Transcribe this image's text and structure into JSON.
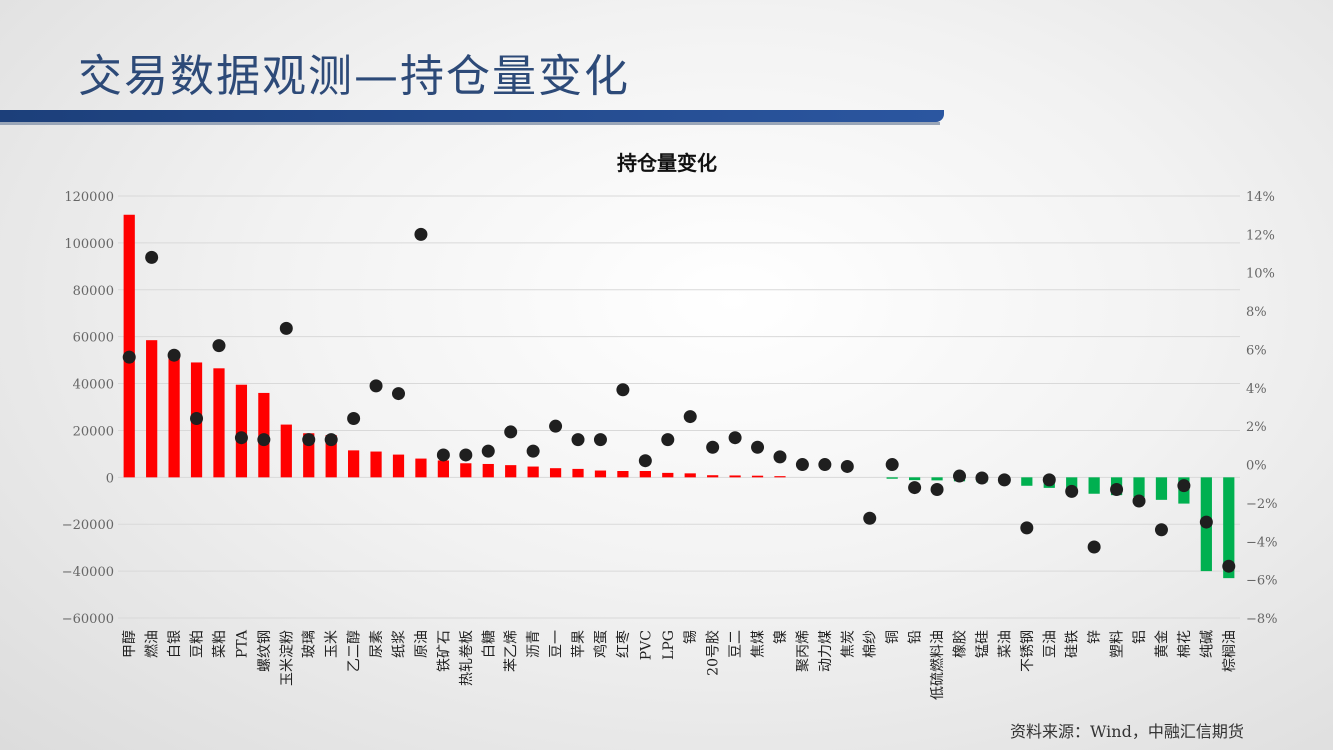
{
  "slide": {
    "title": "交易数据观测—持仓量变化",
    "source": "资料来源：Wind，中融汇信期货"
  },
  "chart_data": {
    "type": "bar",
    "title": "持仓量变化",
    "categories": [
      "甲醇",
      "燃油",
      "白银",
      "豆粕",
      "菜粕",
      "PTA",
      "螺纹钢",
      "玉米淀粉",
      "玻璃",
      "玉米",
      "乙二醇",
      "尿素",
      "纸浆",
      "原油",
      "铁矿石",
      "热轧卷板",
      "白糖",
      "苯乙烯",
      "沥青",
      "豆一",
      "苹果",
      "鸡蛋",
      "红枣",
      "PVC",
      "LPG",
      "锡",
      "20号胶",
      "豆二",
      "焦煤",
      "镍",
      "聚丙烯",
      "动力煤",
      "焦炭",
      "棉纱",
      "铜",
      "铅",
      "低硫燃料油",
      "橡胶",
      "锰硅",
      "菜油",
      "不锈钢",
      "豆油",
      "硅铁",
      "锌",
      "塑料",
      "铝",
      "黄金",
      "棉花",
      "纯碱",
      "棕榈油"
    ],
    "series": [
      {
        "type": "bar",
        "axis": "left",
        "values": [
          112000,
          58500,
          52500,
          49000,
          46500,
          39500,
          36000,
          22500,
          18800,
          18000,
          11500,
          11000,
          9700,
          8000,
          7200,
          6000,
          5700,
          5200,
          4600,
          3900,
          3600,
          2900,
          2700,
          2700,
          1900,
          1700,
          900,
          800,
          700,
          500,
          0,
          0,
          0,
          0,
          -600,
          -1200,
          -1300,
          -1700,
          -2100,
          -2600,
          -3600,
          -4500,
          -6200,
          -7000,
          -7600,
          -8400,
          -9600,
          -11200,
          -40000,
          -43000
        ]
      },
      {
        "type": "scatter",
        "axis": "right",
        "values": [
          5.6,
          10.8,
          5.7,
          2.4,
          6.2,
          1.4,
          1.3,
          7.1,
          1.3,
          1.3,
          2.4,
          4.1,
          3.7,
          12.0,
          0.5,
          0.5,
          0.7,
          1.7,
          0.7,
          2.0,
          1.3,
          1.3,
          3.9,
          0.2,
          1.3,
          2.5,
          0.9,
          1.4,
          0.9,
          0.4,
          0.0,
          0.0,
          -0.1,
          -2.8,
          0.0,
          -1.2,
          -1.3,
          -0.6,
          -0.7,
          -0.8,
          -3.3,
          -0.8,
          -1.4,
          -4.3,
          -1.3,
          -1.9,
          -3.4,
          -1.1,
          -3.0,
          -5.3
        ]
      }
    ],
    "y_left": {
      "min": -60000,
      "max": 120000,
      "step": 20000,
      "ticks": [
        "120000",
        "100000",
        "80000",
        "60000",
        "40000",
        "20000",
        "0",
        "−20000",
        "−40000",
        "−60000"
      ]
    },
    "y_right": {
      "min": -8,
      "max": 14,
      "step": 2,
      "ticks": [
        "14%",
        "12%",
        "10%",
        "8%",
        "6%",
        "4%",
        "2%",
        "0%",
        "−2%",
        "−4%",
        "−6%",
        "−8%"
      ]
    },
    "grid": true,
    "legend": "none",
    "colors": {
      "positive": "#ff0000",
      "negative": "#00b050",
      "marker": "#1f1f1f",
      "grid": "#d9d9d9"
    }
  }
}
